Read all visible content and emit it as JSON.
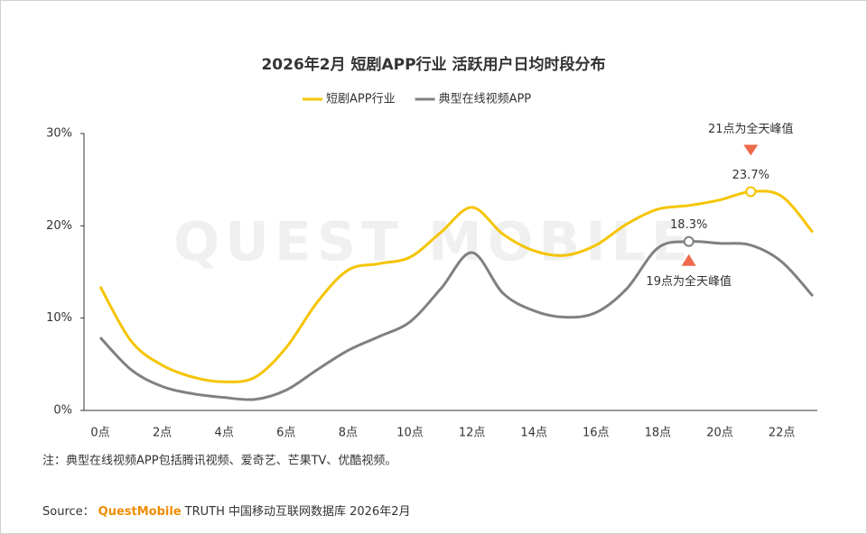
{
  "chart_data": {
    "type": "line",
    "title": "2026年2月 短剧APP行业 活跃用户日均时段分布",
    "watermark": "QUEST MOBILE",
    "categories": [
      "0点",
      null,
      "2点",
      null,
      "4点",
      null,
      "6点",
      null,
      "8点",
      null,
      "10点",
      null,
      "12点",
      null,
      "14点",
      null,
      "16点",
      null,
      "18点",
      null,
      "20点",
      null,
      "22点",
      null
    ],
    "series": [
      {
        "name": "短剧APP行业",
        "color": "#f5c400",
        "values": [
          13.4,
          7.5,
          4.9,
          3.6,
          3.1,
          3.6,
          6.8,
          11.7,
          15.2,
          15.9,
          16.6,
          19.3,
          22.0,
          19.1,
          17.3,
          16.8,
          17.9,
          20.2,
          21.8,
          22.2,
          22.8,
          23.7,
          23.2,
          19.3
        ],
        "value_labels": [
          null,
          null,
          null,
          null,
          null,
          null,
          null,
          null,
          null,
          null,
          null,
          null,
          null,
          null,
          null,
          null,
          null,
          null,
          null,
          null,
          null,
          "23.7%",
          null,
          null
        ]
      },
      {
        "name": "典型在线视频APP",
        "color": "#808080",
        "values": [
          7.9,
          4.4,
          2.6,
          1.8,
          1.4,
          1.2,
          2.2,
          4.4,
          6.5,
          8.0,
          9.6,
          13.2,
          17.1,
          12.7,
          10.8,
          10.1,
          10.6,
          13.2,
          17.6,
          18.3,
          18.1,
          17.9,
          16.1,
          12.4
        ],
        "value_labels": [
          null,
          null,
          null,
          null,
          null,
          null,
          null,
          null,
          null,
          null,
          null,
          null,
          null,
          null,
          null,
          null,
          null,
          null,
          null,
          "18.3%",
          null,
          null,
          null,
          null
        ]
      }
    ],
    "annotations": [
      "21点为全天峰值",
      "19点为全天峰值"
    ],
    "annotation_color": "#ee6a4a",
    "ylim": [
      0,
      30
    ],
    "yticks": [
      {
        "value": 0,
        "label": "0%"
      },
      {
        "value": 10,
        "label": "10%"
      },
      {
        "value": 20,
        "label": "20%"
      },
      {
        "value": 30,
        "label": "30%"
      }
    ],
    "note": "注：典型在线视频APP包括腾讯视频、爱奇艺、芒果TV、优酷视频。",
    "source_prefix": "Source：",
    "source_brand": "QuestMobile",
    "source_text": "TRUTH 中国移动互联网数据库 2026年2月"
  }
}
